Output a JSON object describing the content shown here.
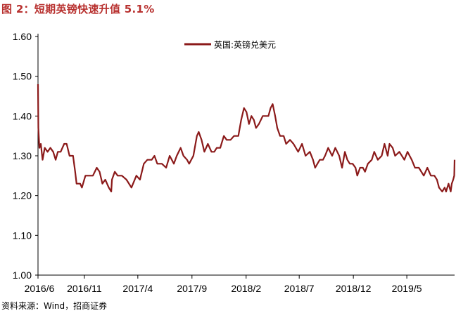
{
  "figure": {
    "title": "图 2：短期英镑快速升值 5.1%",
    "source": "资料来源：Wind，招商证券"
  },
  "chart_data": {
    "type": "line",
    "title": "图 2：短期英镑快速升值 5.1%",
    "xlabel": "",
    "ylabel": "",
    "ylim": [
      1.0,
      1.6
    ],
    "yticks": [
      "1.00",
      "1.10",
      "1.20",
      "1.30",
      "1.40",
      "1.50",
      "1.60"
    ],
    "xlim": [
      "2016-06-23",
      "2019-09-13"
    ],
    "xticks": [
      {
        "date": "2016-06-23",
        "label": "2016/6"
      },
      {
        "date": "2016-11-01",
        "label": "2016/11"
      },
      {
        "date": "2017-04-01",
        "label": "2017/4"
      },
      {
        "date": "2017-09-01",
        "label": "2017/9"
      },
      {
        "date": "2018-02-01",
        "label": "2018/2"
      },
      {
        "date": "2018-07-01",
        "label": "2018/7"
      },
      {
        "date": "2018-12-01",
        "label": "2018/12"
      },
      {
        "date": "2019-05-01",
        "label": "2019/5"
      }
    ],
    "grid": false,
    "legend_position": "top",
    "color": "#8b1a1a",
    "series": [
      {
        "name": "英国:英镑兑美元",
        "points": [
          [
            "2016-06-23",
            1.48
          ],
          [
            "2016-06-24",
            1.37
          ],
          [
            "2016-06-27",
            1.32
          ],
          [
            "2016-07-01",
            1.33
          ],
          [
            "2016-07-06",
            1.29
          ],
          [
            "2016-07-12",
            1.32
          ],
          [
            "2016-07-20",
            1.31
          ],
          [
            "2016-07-28",
            1.32
          ],
          [
            "2016-08-05",
            1.31
          ],
          [
            "2016-08-12",
            1.29
          ],
          [
            "2016-08-18",
            1.31
          ],
          [
            "2016-08-26",
            1.31
          ],
          [
            "2016-09-05",
            1.33
          ],
          [
            "2016-09-12",
            1.33
          ],
          [
            "2016-09-20",
            1.3
          ],
          [
            "2016-09-30",
            1.3
          ],
          [
            "2016-10-06",
            1.26
          ],
          [
            "2016-10-10",
            1.23
          ],
          [
            "2016-10-20",
            1.23
          ],
          [
            "2016-10-25",
            1.22
          ],
          [
            "2016-11-04",
            1.25
          ],
          [
            "2016-11-10",
            1.25
          ],
          [
            "2016-11-25",
            1.25
          ],
          [
            "2016-12-06",
            1.27
          ],
          [
            "2016-12-14",
            1.26
          ],
          [
            "2016-12-22",
            1.23
          ],
          [
            "2016-12-30",
            1.24
          ],
          [
            "2017-01-09",
            1.22
          ],
          [
            "2017-01-16",
            1.21
          ],
          [
            "2017-01-18",
            1.24
          ],
          [
            "2017-01-26",
            1.26
          ],
          [
            "2017-02-03",
            1.25
          ],
          [
            "2017-02-15",
            1.25
          ],
          [
            "2017-02-28",
            1.24
          ],
          [
            "2017-03-14",
            1.22
          ],
          [
            "2017-03-28",
            1.25
          ],
          [
            "2017-04-07",
            1.24
          ],
          [
            "2017-04-18",
            1.28
          ],
          [
            "2017-04-28",
            1.29
          ],
          [
            "2017-05-10",
            1.29
          ],
          [
            "2017-05-18",
            1.3
          ],
          [
            "2017-05-26",
            1.28
          ],
          [
            "2017-06-08",
            1.28
          ],
          [
            "2017-06-20",
            1.27
          ],
          [
            "2017-06-30",
            1.3
          ],
          [
            "2017-07-12",
            1.28
          ],
          [
            "2017-07-20",
            1.3
          ],
          [
            "2017-07-31",
            1.32
          ],
          [
            "2017-08-08",
            1.3
          ],
          [
            "2017-08-18",
            1.29
          ],
          [
            "2017-08-24",
            1.28
          ],
          [
            "2017-09-05",
            1.3
          ],
          [
            "2017-09-15",
            1.35
          ],
          [
            "2017-09-20",
            1.36
          ],
          [
            "2017-09-28",
            1.34
          ],
          [
            "2017-10-06",
            1.31
          ],
          [
            "2017-10-16",
            1.33
          ],
          [
            "2017-10-26",
            1.31
          ],
          [
            "2017-11-03",
            1.31
          ],
          [
            "2017-11-10",
            1.32
          ],
          [
            "2017-11-20",
            1.32
          ],
          [
            "2017-11-30",
            1.35
          ],
          [
            "2017-12-08",
            1.34
          ],
          [
            "2017-12-19",
            1.34
          ],
          [
            "2017-12-29",
            1.35
          ],
          [
            "2018-01-10",
            1.35
          ],
          [
            "2018-01-18",
            1.39
          ],
          [
            "2018-01-26",
            1.42
          ],
          [
            "2018-02-02",
            1.41
          ],
          [
            "2018-02-09",
            1.38
          ],
          [
            "2018-02-16",
            1.4
          ],
          [
            "2018-02-23",
            1.39
          ],
          [
            "2018-03-01",
            1.37
          ],
          [
            "2018-03-09",
            1.38
          ],
          [
            "2018-03-20",
            1.4
          ],
          [
            "2018-03-29",
            1.4
          ],
          [
            "2018-04-05",
            1.4
          ],
          [
            "2018-04-11",
            1.42
          ],
          [
            "2018-04-17",
            1.43
          ],
          [
            "2018-04-24",
            1.4
          ],
          [
            "2018-04-30",
            1.37
          ],
          [
            "2018-05-08",
            1.35
          ],
          [
            "2018-05-18",
            1.35
          ],
          [
            "2018-05-25",
            1.33
          ],
          [
            "2018-06-05",
            1.34
          ],
          [
            "2018-06-15",
            1.33
          ],
          [
            "2018-06-28",
            1.31
          ],
          [
            "2018-07-09",
            1.33
          ],
          [
            "2018-07-19",
            1.3
          ],
          [
            "2018-07-31",
            1.31
          ],
          [
            "2018-08-09",
            1.29
          ],
          [
            "2018-08-15",
            1.27
          ],
          [
            "2018-08-28",
            1.29
          ],
          [
            "2018-09-06",
            1.29
          ],
          [
            "2018-09-12",
            1.3
          ],
          [
            "2018-09-21",
            1.32
          ],
          [
            "2018-10-02",
            1.3
          ],
          [
            "2018-10-11",
            1.32
          ],
          [
            "2018-10-22",
            1.3
          ],
          [
            "2018-10-30",
            1.27
          ],
          [
            "2018-11-07",
            1.31
          ],
          [
            "2018-11-14",
            1.29
          ],
          [
            "2018-11-21",
            1.28
          ],
          [
            "2018-11-29",
            1.28
          ],
          [
            "2018-12-07",
            1.27
          ],
          [
            "2018-12-12",
            1.25
          ],
          [
            "2018-12-20",
            1.27
          ],
          [
            "2018-12-28",
            1.27
          ],
          [
            "2019-01-03",
            1.26
          ],
          [
            "2019-01-11",
            1.28
          ],
          [
            "2019-01-22",
            1.29
          ],
          [
            "2019-01-29",
            1.31
          ],
          [
            "2019-02-08",
            1.29
          ],
          [
            "2019-02-19",
            1.3
          ],
          [
            "2019-02-27",
            1.33
          ],
          [
            "2019-03-08",
            1.3
          ],
          [
            "2019-03-13",
            1.33
          ],
          [
            "2019-03-22",
            1.32
          ],
          [
            "2019-03-29",
            1.3
          ],
          [
            "2019-04-10",
            1.31
          ],
          [
            "2019-04-24",
            1.29
          ],
          [
            "2019-05-03",
            1.31
          ],
          [
            "2019-05-15",
            1.29
          ],
          [
            "2019-05-24",
            1.27
          ],
          [
            "2019-06-04",
            1.27
          ],
          [
            "2019-06-18",
            1.25
          ],
          [
            "2019-06-28",
            1.27
          ],
          [
            "2019-07-08",
            1.25
          ],
          [
            "2019-07-18",
            1.25
          ],
          [
            "2019-07-25",
            1.24
          ],
          [
            "2019-07-31",
            1.22
          ],
          [
            "2019-08-09",
            1.21
          ],
          [
            "2019-08-16",
            1.22
          ],
          [
            "2019-08-20",
            1.21
          ],
          [
            "2019-08-27",
            1.23
          ],
          [
            "2019-09-02",
            1.21
          ],
          [
            "2019-09-05",
            1.23
          ],
          [
            "2019-09-09",
            1.24
          ],
          [
            "2019-09-12",
            1.25
          ],
          [
            "2019-09-13",
            1.29
          ]
        ]
      }
    ]
  }
}
